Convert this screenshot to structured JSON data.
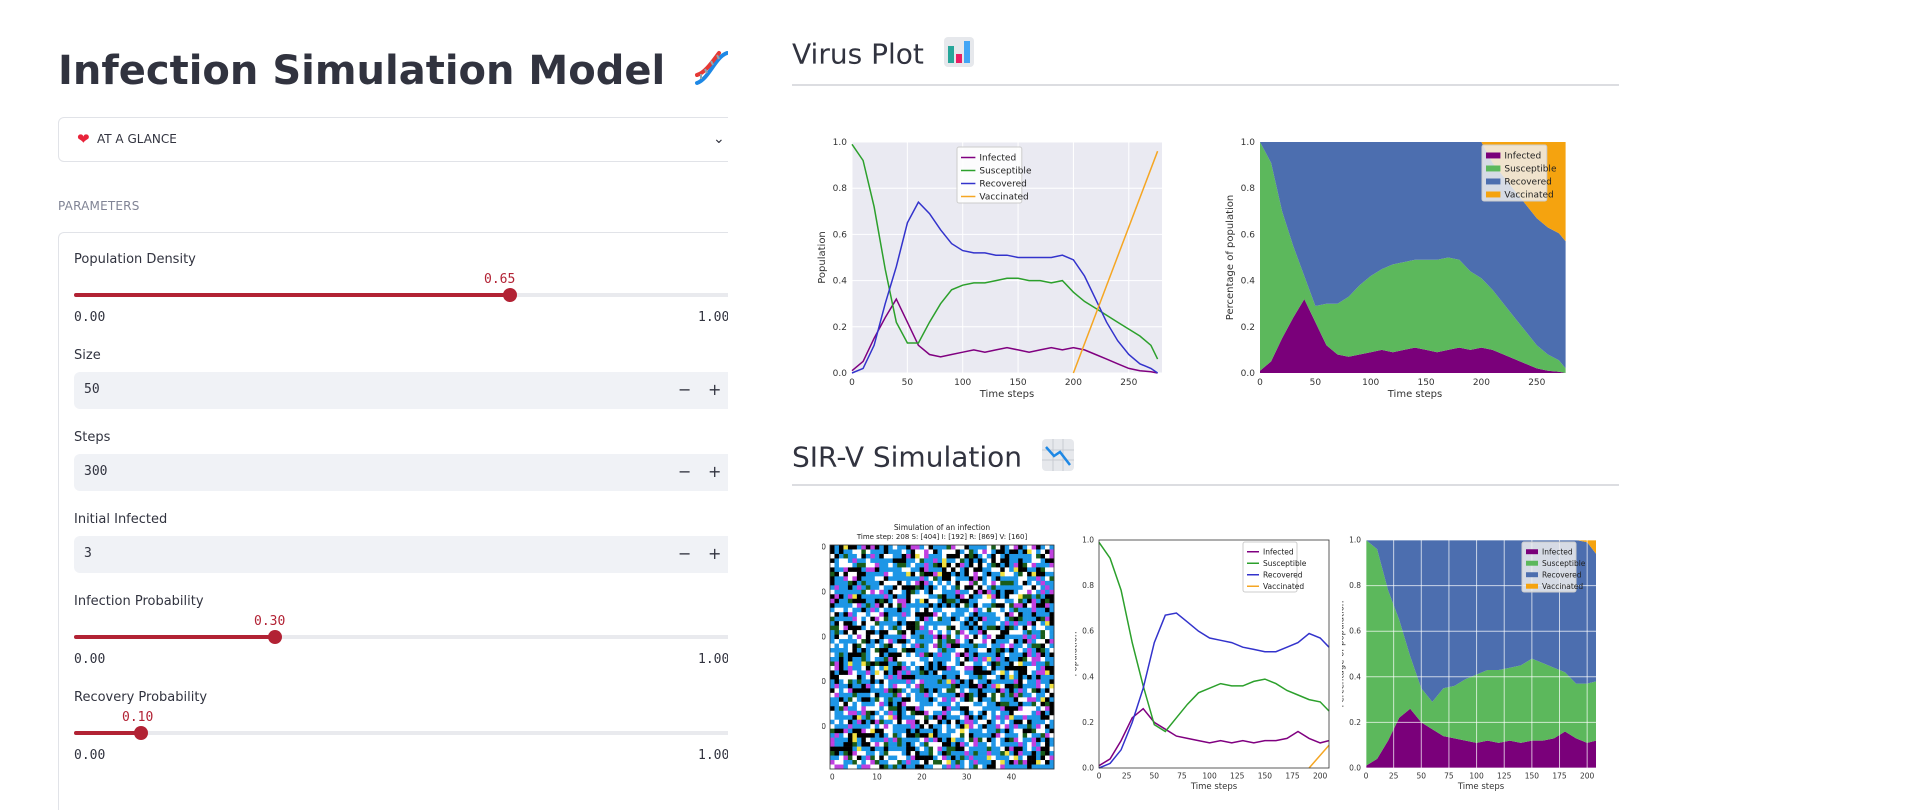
{
  "app": {
    "title": "Infection Simulation Model"
  },
  "sidebar": {
    "expander_label": "AT A GLANCE",
    "parameters_caption": "PARAMETERS",
    "population_density": {
      "label": "Population Density",
      "value": "0.65",
      "min": "0.00",
      "max": "1.00",
      "fraction": 0.65
    },
    "size": {
      "label": "Size",
      "value": "50",
      "minus": "−",
      "plus": "+"
    },
    "steps": {
      "label": "Steps",
      "value": "300",
      "minus": "−",
      "plus": "+"
    },
    "initial_infected": {
      "label": "Initial Infected",
      "value": "3",
      "minus": "−",
      "plus": "+"
    },
    "infection_probability": {
      "label": "Infection Probability",
      "value": "0.30",
      "min": "0.00",
      "max": "1.00",
      "fraction": 0.3
    },
    "recovery_probability": {
      "label": "Recovery Probability",
      "value": "0.10",
      "min": "0.00",
      "max": "1.00",
      "fraction": 0.1
    }
  },
  "main": {
    "virus_plot_title": "Virus Plot",
    "sirv_title": "SIR-V Simulation"
  },
  "colors": {
    "accent": "#b22234",
    "infected": "#800080",
    "susceptible": "#2ca02c",
    "recovered": "#3333cc",
    "vaccinated": "#f5a623",
    "stack_infected": "#7a007a",
    "stack_susceptible": "#5cb85c",
    "stack_recovered": "#4c6eaf",
    "stack_vaccinated": "#f5a30f"
  },
  "chart_data": [
    {
      "type": "line",
      "xlabel": "Time steps",
      "ylabel": "Population",
      "xlim": [
        0,
        280
      ],
      "ylim": [
        0,
        1.0
      ],
      "xticks": [
        0,
        50,
        100,
        150,
        200,
        250
      ],
      "yticks": [
        "0.0",
        "0.2",
        "0.4",
        "0.6",
        "0.8",
        "1.0"
      ],
      "legend": "top-center",
      "grid": true,
      "series": [
        {
          "name": "Infected",
          "x": [
            0,
            10,
            20,
            30,
            40,
            50,
            60,
            70,
            80,
            90,
            100,
            110,
            120,
            130,
            140,
            150,
            160,
            170,
            180,
            190,
            200,
            210,
            220,
            230,
            240,
            250,
            260,
            270,
            276
          ],
          "values": [
            0.01,
            0.05,
            0.15,
            0.24,
            0.32,
            0.22,
            0.12,
            0.08,
            0.07,
            0.08,
            0.09,
            0.1,
            0.09,
            0.1,
            0.11,
            0.1,
            0.09,
            0.1,
            0.11,
            0.1,
            0.11,
            0.1,
            0.08,
            0.06,
            0.04,
            0.02,
            0.01,
            0.005,
            0.0
          ]
        },
        {
          "name": "Susceptible",
          "x": [
            0,
            10,
            20,
            30,
            40,
            50,
            60,
            70,
            80,
            90,
            100,
            110,
            120,
            130,
            140,
            150,
            160,
            170,
            180,
            190,
            200,
            210,
            220,
            230,
            240,
            250,
            260,
            270,
            276
          ],
          "values": [
            0.99,
            0.92,
            0.72,
            0.45,
            0.22,
            0.13,
            0.13,
            0.22,
            0.3,
            0.36,
            0.38,
            0.39,
            0.39,
            0.4,
            0.41,
            0.41,
            0.4,
            0.4,
            0.39,
            0.4,
            0.35,
            0.31,
            0.28,
            0.25,
            0.22,
            0.19,
            0.16,
            0.12,
            0.06
          ]
        },
        {
          "name": "Recovered",
          "x": [
            0,
            10,
            20,
            30,
            40,
            50,
            60,
            70,
            80,
            90,
            100,
            110,
            120,
            130,
            140,
            150,
            160,
            170,
            180,
            190,
            200,
            210,
            220,
            230,
            240,
            250,
            260,
            270,
            276
          ],
          "values": [
            0.0,
            0.02,
            0.12,
            0.3,
            0.46,
            0.65,
            0.74,
            0.69,
            0.62,
            0.56,
            0.53,
            0.52,
            0.52,
            0.51,
            0.51,
            0.5,
            0.5,
            0.5,
            0.5,
            0.51,
            0.49,
            0.42,
            0.32,
            0.22,
            0.14,
            0.08,
            0.04,
            0.02,
            0.0
          ]
        },
        {
          "name": "Vaccinated",
          "x": [
            200,
            276
          ],
          "values": [
            0.0,
            0.96
          ]
        }
      ]
    },
    {
      "type": "area",
      "xlabel": "Time steps",
      "ylabel": "Percentage of population",
      "xlim": [
        0,
        280
      ],
      "ylim": [
        0,
        1.0
      ],
      "xticks": [
        0,
        50,
        100,
        150,
        200,
        250
      ],
      "yticks": [
        "0.0",
        "0.2",
        "0.4",
        "0.6",
        "0.8",
        "1.0"
      ],
      "legend": "top-right",
      "x": [
        0,
        10,
        20,
        30,
        40,
        50,
        60,
        70,
        80,
        90,
        100,
        110,
        120,
        130,
        140,
        150,
        160,
        170,
        180,
        190,
        200,
        210,
        220,
        230,
        240,
        250,
        260,
        270,
        276
      ],
      "series": [
        {
          "name": "Infected",
          "values": [
            0.01,
            0.05,
            0.15,
            0.24,
            0.32,
            0.22,
            0.12,
            0.08,
            0.07,
            0.08,
            0.09,
            0.1,
            0.09,
            0.1,
            0.11,
            0.1,
            0.09,
            0.1,
            0.11,
            0.1,
            0.11,
            0.1,
            0.08,
            0.06,
            0.04,
            0.02,
            0.01,
            0.005,
            0.0
          ]
        },
        {
          "name": "Susceptible",
          "values": [
            0.99,
            0.86,
            0.55,
            0.31,
            0.1,
            0.07,
            0.18,
            0.22,
            0.26,
            0.3,
            0.33,
            0.35,
            0.38,
            0.38,
            0.38,
            0.39,
            0.4,
            0.4,
            0.38,
            0.34,
            0.3,
            0.26,
            0.22,
            0.18,
            0.14,
            0.1,
            0.07,
            0.05,
            0.02
          ]
        },
        {
          "name": "Recovered",
          "values": [
            0.0,
            0.09,
            0.3,
            0.45,
            0.58,
            0.71,
            0.7,
            0.7,
            0.67,
            0.62,
            0.58,
            0.55,
            0.53,
            0.52,
            0.51,
            0.51,
            0.51,
            0.5,
            0.51,
            0.56,
            0.59,
            0.55,
            0.55,
            0.55,
            0.55,
            0.55,
            0.55,
            0.55,
            0.55
          ]
        },
        {
          "name": "Vaccinated",
          "values": [
            0.0,
            0.0,
            0.0,
            0.0,
            0.0,
            0.0,
            0.0,
            0.0,
            0.0,
            0.0,
            0.0,
            0.0,
            0.0,
            0.0,
            0.0,
            0.0,
            0.0,
            0.0,
            0.0,
            0.0,
            0.0,
            0.09,
            0.15,
            0.21,
            0.27,
            0.33,
            0.37,
            0.395,
            0.43
          ]
        }
      ]
    },
    {
      "type": "heatmap",
      "title": "Simulation of an infection",
      "subtitle": "Time step: 208 S: [404] I: [192] R: [869] V: [160]",
      "xticks": [
        0,
        10,
        20,
        30,
        40
      ],
      "yticks": [
        0,
        10,
        20,
        30,
        40
      ],
      "grid_size": 50,
      "palette": [
        "#1e96e6",
        "#ffffff",
        "#000000",
        "#c040e0",
        "#1a5c1a",
        "#f0e040"
      ]
    },
    {
      "type": "line",
      "xlabel": "Time steps",
      "ylabel": "Population",
      "xlim": [
        0,
        208
      ],
      "ylim": [
        0,
        1.0
      ],
      "xticks": [
        0,
        25,
        50,
        75,
        100,
        125,
        150,
        175,
        200
      ],
      "yticks": [
        "0.0",
        "0.2",
        "0.4",
        "0.6",
        "0.8",
        "1.0"
      ],
      "legend": "top-right",
      "series": [
        {
          "name": "Infected",
          "x": [
            0,
            10,
            20,
            30,
            40,
            50,
            60,
            70,
            80,
            90,
            100,
            110,
            120,
            130,
            140,
            150,
            160,
            170,
            180,
            190,
            200,
            208
          ],
          "values": [
            0.01,
            0.04,
            0.12,
            0.22,
            0.26,
            0.2,
            0.17,
            0.14,
            0.13,
            0.12,
            0.11,
            0.12,
            0.11,
            0.12,
            0.11,
            0.12,
            0.12,
            0.13,
            0.16,
            0.13,
            0.11,
            0.12
          ]
        },
        {
          "name": "Susceptible",
          "x": [
            0,
            10,
            20,
            30,
            40,
            50,
            60,
            70,
            80,
            90,
            100,
            110,
            120,
            130,
            140,
            150,
            160,
            170,
            180,
            190,
            200,
            208
          ],
          "values": [
            0.99,
            0.92,
            0.78,
            0.55,
            0.36,
            0.19,
            0.16,
            0.22,
            0.28,
            0.33,
            0.35,
            0.37,
            0.36,
            0.36,
            0.38,
            0.39,
            0.37,
            0.34,
            0.32,
            0.3,
            0.29,
            0.25
          ]
        },
        {
          "name": "Recovered",
          "x": [
            0,
            10,
            20,
            30,
            40,
            50,
            60,
            70,
            80,
            90,
            100,
            110,
            120,
            130,
            140,
            150,
            160,
            170,
            180,
            190,
            200,
            208
          ],
          "values": [
            0.0,
            0.02,
            0.08,
            0.2,
            0.35,
            0.55,
            0.67,
            0.68,
            0.64,
            0.6,
            0.57,
            0.56,
            0.55,
            0.53,
            0.52,
            0.51,
            0.51,
            0.53,
            0.55,
            0.59,
            0.57,
            0.53
          ]
        },
        {
          "name": "Vaccinated",
          "x": [
            190,
            208
          ],
          "values": [
            0.0,
            0.1
          ]
        }
      ]
    },
    {
      "type": "area",
      "xlabel": "Time steps",
      "ylabel": "Percentage of population",
      "xlim": [
        0,
        208
      ],
      "ylim": [
        0,
        1.0
      ],
      "xticks": [
        0,
        25,
        50,
        75,
        100,
        125,
        150,
        175,
        200
      ],
      "yticks": [
        "0.0",
        "0.2",
        "0.4",
        "0.6",
        "0.8",
        "1.0"
      ],
      "legend": "top-right",
      "grid": true,
      "x": [
        0,
        10,
        20,
        30,
        40,
        50,
        60,
        70,
        80,
        90,
        100,
        110,
        120,
        130,
        140,
        150,
        160,
        170,
        180,
        190,
        200,
        208
      ],
      "series": [
        {
          "name": "Infected",
          "values": [
            0.01,
            0.04,
            0.12,
            0.22,
            0.26,
            0.2,
            0.17,
            0.14,
            0.13,
            0.12,
            0.11,
            0.12,
            0.11,
            0.12,
            0.11,
            0.12,
            0.12,
            0.13,
            0.16,
            0.13,
            0.11,
            0.12
          ]
        },
        {
          "name": "Susceptible",
          "values": [
            0.99,
            0.92,
            0.66,
            0.43,
            0.23,
            0.15,
            0.12,
            0.21,
            0.23,
            0.27,
            0.3,
            0.31,
            0.32,
            0.32,
            0.34,
            0.36,
            0.34,
            0.31,
            0.26,
            0.24,
            0.26,
            0.26
          ]
        },
        {
          "name": "Recovered",
          "values": [
            0.0,
            0.04,
            0.22,
            0.35,
            0.51,
            0.65,
            0.71,
            0.65,
            0.64,
            0.61,
            0.59,
            0.57,
            0.57,
            0.56,
            0.55,
            0.52,
            0.54,
            0.56,
            0.58,
            0.63,
            0.62,
            0.56
          ]
        },
        {
          "name": "Vaccinated",
          "values": [
            0.0,
            0.0,
            0.0,
            0.0,
            0.0,
            0.0,
            0.0,
            0.0,
            0.0,
            0.0,
            0.0,
            0.0,
            0.0,
            0.0,
            0.0,
            0.0,
            0.0,
            0.0,
            0.0,
            0.0,
            0.01,
            0.06
          ]
        }
      ]
    }
  ]
}
